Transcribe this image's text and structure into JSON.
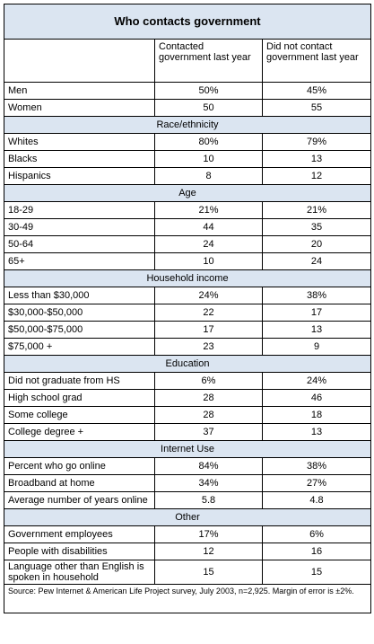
{
  "title": "Who contacts government",
  "columns": [
    "Contacted government last year",
    "Did not contact government last year"
  ],
  "groups": [
    {
      "rows": [
        {
          "label": "Men",
          "values": [
            "50%",
            "45%"
          ]
        },
        {
          "label": "Women",
          "values": [
            "50",
            "55"
          ]
        }
      ]
    },
    {
      "heading": "Race/ethnicity",
      "rows": [
        {
          "label": "Whites",
          "values": [
            "80%",
            "79%"
          ]
        },
        {
          "label": "Blacks",
          "values": [
            "10",
            "13"
          ]
        },
        {
          "label": "Hispanics",
          "values": [
            "8",
            "12"
          ]
        }
      ]
    },
    {
      "heading": "Age",
      "rows": [
        {
          "label": "18-29",
          "values": [
            "21%",
            "21%"
          ]
        },
        {
          "label": "30-49",
          "values": [
            "44",
            "35"
          ]
        },
        {
          "label": "50-64",
          "values": [
            "24",
            "20"
          ]
        },
        {
          "label": "65+",
          "values": [
            "10",
            "24"
          ]
        }
      ]
    },
    {
      "heading": "Household income",
      "rows": [
        {
          "label": "Less than $30,000",
          "values": [
            "24%",
            "38%"
          ]
        },
        {
          "label": "$30,000-$50,000",
          "values": [
            "22",
            "17"
          ]
        },
        {
          "label": "$50,000-$75,000",
          "values": [
            "17",
            "13"
          ]
        },
        {
          "label": "$75,000 +",
          "values": [
            "23",
            "9"
          ]
        }
      ]
    },
    {
      "heading": "Education",
      "rows": [
        {
          "label": "Did not graduate from HS",
          "values": [
            "6%",
            "24%"
          ]
        },
        {
          "label": "High school grad",
          "values": [
            "28",
            "46"
          ]
        },
        {
          "label": "Some college",
          "values": [
            "28",
            "18"
          ]
        },
        {
          "label": "College degree +",
          "values": [
            "37",
            "13"
          ]
        }
      ]
    },
    {
      "heading": "Internet Use",
      "rows": [
        {
          "label": "Percent who go online",
          "values": [
            "84%",
            "38%"
          ]
        },
        {
          "label": "Broadband at home",
          "values": [
            "34%",
            "27%"
          ]
        },
        {
          "label": "Average number of years online",
          "values": [
            "5.8",
            "4.8"
          ]
        }
      ]
    },
    {
      "heading": "Other",
      "rows": [
        {
          "label": "Government employees",
          "values": [
            "17%",
            "6%"
          ]
        },
        {
          "label": "People with disabilities",
          "values": [
            "12",
            "16"
          ]
        },
        {
          "label": "Language other than English is spoken in household",
          "values": [
            "15",
            "15"
          ]
        }
      ]
    }
  ],
  "source": "Source: Pew Internet & American Life Project survey, July 2003, n=2,925. Margin of error is ±2%."
}
